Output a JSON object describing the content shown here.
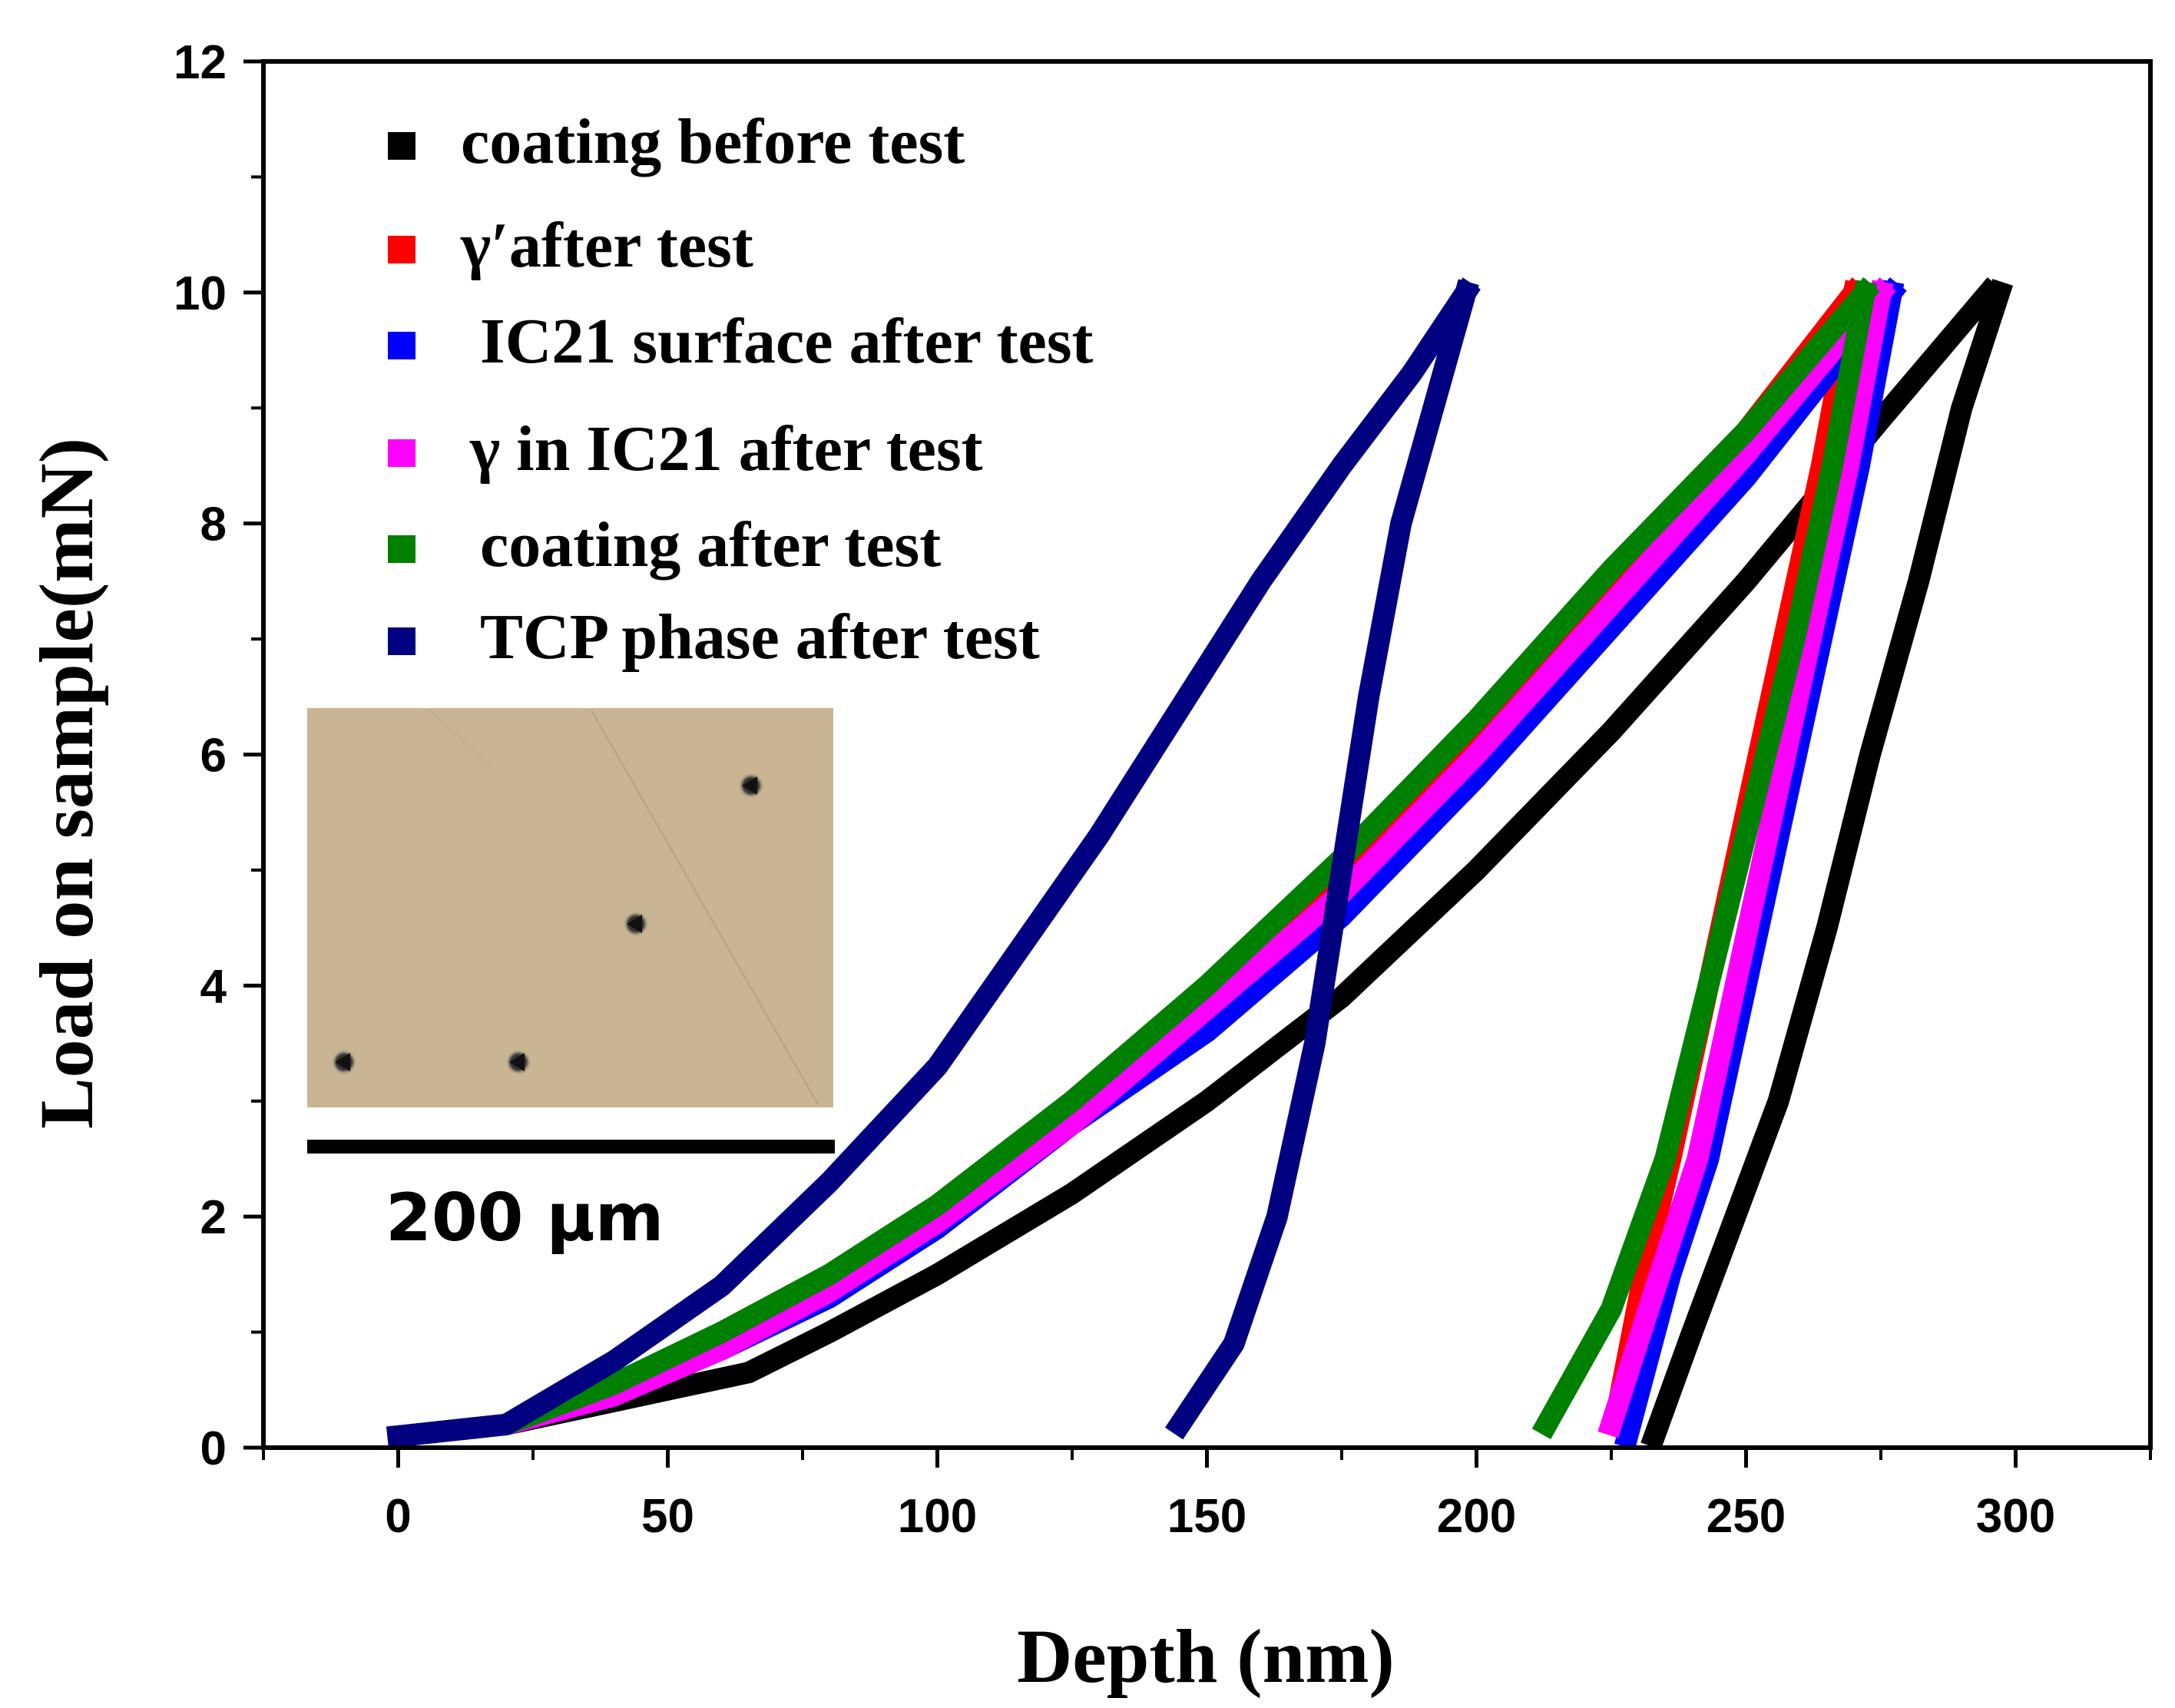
{
  "chart_data": {
    "type": "line",
    "title": "",
    "xlabel": "Depth (nm)",
    "ylabel": "Load on sample(mN)",
    "xlim": [
      -25,
      325
    ],
    "ylim": [
      0,
      12
    ],
    "xticks": [
      0,
      50,
      100,
      150,
      200,
      250,
      300
    ],
    "yticks": [
      0,
      2,
      4,
      6,
      8,
      10,
      12
    ],
    "x_tick_labels": [
      "0",
      "50",
      "100",
      "150",
      "200",
      "250",
      "300"
    ],
    "y_tick_labels": [
      "0",
      "2",
      "4",
      "6",
      "8",
      "10",
      "12"
    ],
    "legend_position": "top-left",
    "series": [
      {
        "name": "coating before test",
        "color": "#000000",
        "loading": [
          [
            0,
            0.1
          ],
          [
            20,
            0.2
          ],
          [
            40,
            0.4
          ],
          [
            65,
            0.65
          ],
          [
            80,
            1.0
          ],
          [
            100,
            1.5
          ],
          [
            125,
            2.2
          ],
          [
            150,
            3.0
          ],
          [
            175,
            3.9
          ],
          [
            200,
            5.0
          ],
          [
            225,
            6.2
          ],
          [
            250,
            7.5
          ],
          [
            275,
            8.9
          ],
          [
            295,
            10.0
          ]
        ],
        "unloading": [
          [
            297,
            10.0
          ],
          [
            290,
            9.0
          ],
          [
            282,
            7.5
          ],
          [
            273,
            6.0
          ],
          [
            265,
            4.5
          ],
          [
            256,
            3.0
          ],
          [
            248,
            2.0
          ],
          [
            240,
            1.0
          ],
          [
            233,
            0.1
          ]
        ]
      },
      {
        "name": "γ′after test",
        "color": "#ff0000",
        "loading": [
          [
            0,
            0.1
          ],
          [
            20,
            0.2
          ],
          [
            40,
            0.5
          ],
          [
            60,
            0.9
          ],
          [
            80,
            1.4
          ],
          [
            100,
            2.0
          ],
          [
            125,
            2.9
          ],
          [
            150,
            3.8
          ],
          [
            175,
            4.9
          ],
          [
            200,
            6.1
          ],
          [
            225,
            7.5
          ],
          [
            250,
            8.8
          ],
          [
            270,
            10.0
          ]
        ],
        "unloading": [
          [
            270,
            10.0
          ],
          [
            264,
            8.5
          ],
          [
            257,
            7.0
          ],
          [
            250,
            5.5
          ],
          [
            243,
            4.0
          ],
          [
            236,
            2.5
          ],
          [
            231,
            1.5
          ],
          [
            226,
            0.3
          ]
        ]
      },
      {
        "name": "IC21 surface after test",
        "color": "#0000ff",
        "loading": [
          [
            0,
            0.1
          ],
          [
            20,
            0.2
          ],
          [
            40,
            0.45
          ],
          [
            60,
            0.85
          ],
          [
            80,
            1.3
          ],
          [
            100,
            1.9
          ],
          [
            125,
            2.8
          ],
          [
            150,
            3.6
          ],
          [
            175,
            4.6
          ],
          [
            200,
            5.8
          ],
          [
            225,
            7.1
          ],
          [
            250,
            8.4
          ],
          [
            277,
            10.0
          ]
        ],
        "unloading": [
          [
            277,
            10.0
          ],
          [
            271,
            8.5
          ],
          [
            264,
            7.0
          ],
          [
            257,
            5.5
          ],
          [
            250,
            4.0
          ],
          [
            243,
            2.5
          ],
          [
            236,
            1.5
          ],
          [
            228,
            0.1
          ]
        ]
      },
      {
        "name": "γ in IC21 after test",
        "color": "#ff00ff",
        "loading": [
          [
            0,
            0.1
          ],
          [
            20,
            0.2
          ],
          [
            40,
            0.45
          ],
          [
            60,
            0.85
          ],
          [
            80,
            1.35
          ],
          [
            100,
            1.95
          ],
          [
            125,
            2.8
          ],
          [
            150,
            3.8
          ],
          [
            175,
            4.8
          ],
          [
            200,
            6.0
          ],
          [
            225,
            7.3
          ],
          [
            250,
            8.6
          ],
          [
            275,
            10.0
          ]
        ],
        "unloading": [
          [
            275,
            10.0
          ],
          [
            269,
            8.5
          ],
          [
            262,
            7.0
          ],
          [
            255,
            5.5
          ],
          [
            248,
            4.0
          ],
          [
            241,
            2.5
          ],
          [
            234,
            1.5
          ],
          [
            225,
            0.2
          ]
        ]
      },
      {
        "name": "coating after test",
        "color": "#008000",
        "loading": [
          [
            0,
            0.1
          ],
          [
            20,
            0.2
          ],
          [
            40,
            0.55
          ],
          [
            60,
            1.0
          ],
          [
            80,
            1.5
          ],
          [
            100,
            2.1
          ],
          [
            125,
            3.0
          ],
          [
            150,
            4.0
          ],
          [
            175,
            5.1
          ],
          [
            200,
            6.3
          ],
          [
            225,
            7.6
          ],
          [
            250,
            8.8
          ],
          [
            272,
            10.0
          ]
        ],
        "unloading": [
          [
            272,
            10.0
          ],
          [
            266,
            8.5
          ],
          [
            259,
            7.0
          ],
          [
            251,
            5.5
          ],
          [
            243,
            4.0
          ],
          [
            235,
            2.5
          ],
          [
            225,
            1.2
          ],
          [
            213,
            0.2
          ]
        ]
      },
      {
        "name": "TCP phase after test",
        "color": "#000080",
        "loading": [
          [
            0,
            0.1
          ],
          [
            20,
            0.2
          ],
          [
            40,
            0.75
          ],
          [
            60,
            1.4
          ],
          [
            80,
            2.3
          ],
          [
            100,
            3.3
          ],
          [
            115,
            4.3
          ],
          [
            130,
            5.3
          ],
          [
            145,
            6.4
          ],
          [
            160,
            7.5
          ],
          [
            175,
            8.5
          ],
          [
            188,
            9.3
          ],
          [
            198,
            10.0
          ]
        ],
        "unloading": [
          [
            198,
            10.0
          ],
          [
            192,
            9.0
          ],
          [
            186,
            8.0
          ],
          [
            180,
            6.5
          ],
          [
            175,
            5.0
          ],
          [
            170,
            3.5
          ],
          [
            163,
            2.0
          ],
          [
            155,
            0.9
          ],
          [
            145,
            0.2
          ]
        ]
      }
    ],
    "inset": {
      "scale_bar_label": "200 μm"
    }
  }
}
